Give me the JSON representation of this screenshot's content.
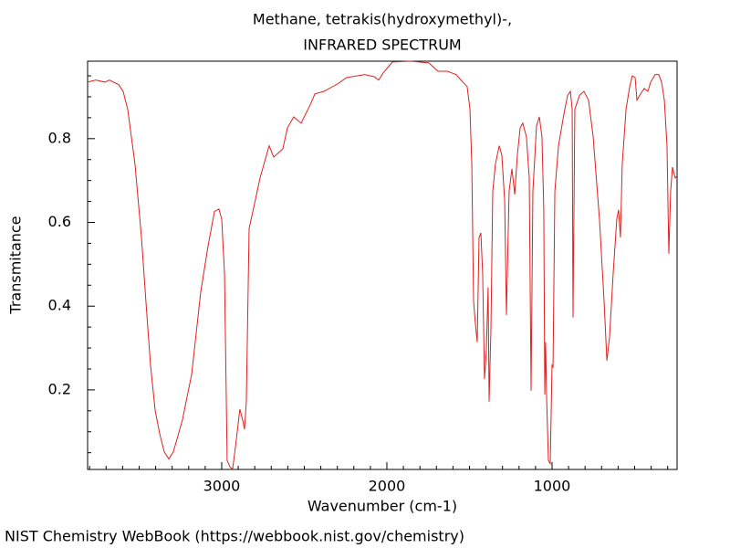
{
  "chart_data": {
    "type": "line",
    "title": "Methane, tetrakis(hydroxymethyl)-,",
    "subtitle": "INFRARED SPECTRUM",
    "xlabel": "Wavenumber (cm-1)",
    "ylabel": "Transmitance",
    "footer": "NIST Chemistry WebBook (https://webbook.nist.gov/chemistry)",
    "color": "#e02020",
    "xlim": [
      3812,
      243
    ],
    "ylim": [
      0.01,
      0.985
    ],
    "xticks": [
      3000,
      2000,
      1000
    ],
    "yticks": [
      0.2,
      0.4,
      0.6,
      0.8
    ],
    "xminorticks": [
      3800,
      3700,
      3600,
      3500,
      3400,
      3300,
      3200,
      3100,
      2900,
      2800,
      2700,
      2600,
      2500,
      2400,
      2300,
      2200,
      2100,
      1900,
      1800,
      1700,
      1600,
      1500,
      1400,
      1300,
      1200,
      1100,
      900,
      800,
      700,
      600,
      500,
      400,
      300
    ],
    "yminorticks": [
      0.05,
      0.1,
      0.15,
      0.25,
      0.3,
      0.35,
      0.45,
      0.5,
      0.55,
      0.65,
      0.7,
      0.75,
      0.85,
      0.9,
      0.95
    ],
    "x": [
      3812,
      3762,
      3707,
      3680,
      3624,
      3597,
      3569,
      3525,
      3486,
      3459,
      3431,
      3403,
      3376,
      3348,
      3320,
      3293,
      3238,
      3182,
      3127,
      3083,
      3044,
      3017,
      3000,
      2983,
      2967,
      2950,
      2934,
      2917,
      2890,
      2873,
      2862,
      2851,
      2834,
      2807,
      2768,
      2713,
      2685,
      2630,
      2602,
      2564,
      2519,
      2464,
      2436,
      2381,
      2298,
      2243,
      2133,
      2077,
      2050,
      2022,
      1967,
      1856,
      1746,
      1691,
      1635,
      1580,
      1552,
      1514,
      1497,
      1486,
      1475,
      1464,
      1453,
      1442,
      1431,
      1420,
      1409,
      1398,
      1387,
      1381,
      1370,
      1359,
      1343,
      1320,
      1304,
      1287,
      1276,
      1260,
      1243,
      1226,
      1210,
      1193,
      1177,
      1155,
      1138,
      1127,
      1116,
      1094,
      1077,
      1061,
      1050,
      1044,
      1039,
      1033,
      1022,
      1011,
      1000,
      994,
      983,
      961,
      928,
      906,
      889,
      878,
      873,
      862,
      834,
      807,
      779,
      751,
      713,
      685,
      668,
      652,
      630,
      608,
      597,
      586,
      575,
      552,
      530,
      514,
      497,
      486,
      464,
      442,
      420,
      403,
      376,
      354,
      337,
      320,
      304,
      293,
      282,
      271,
      254,
      243
    ],
    "values": [
      0.935,
      0.94,
      0.935,
      0.94,
      0.929,
      0.913,
      0.87,
      0.739,
      0.564,
      0.412,
      0.259,
      0.151,
      0.096,
      0.052,
      0.035,
      0.052,
      0.128,
      0.237,
      0.434,
      0.543,
      0.626,
      0.632,
      0.608,
      0.477,
      0.031,
      0.016,
      0.011,
      0.063,
      0.154,
      0.128,
      0.106,
      0.172,
      0.586,
      0.634,
      0.706,
      0.783,
      0.756,
      0.776,
      0.826,
      0.852,
      0.837,
      0.881,
      0.907,
      0.913,
      0.931,
      0.946,
      0.953,
      0.948,
      0.94,
      0.957,
      0.983,
      0.985,
      0.981,
      0.961,
      0.961,
      0.953,
      0.94,
      0.924,
      0.87,
      0.739,
      0.412,
      0.357,
      0.314,
      0.564,
      0.575,
      0.477,
      0.226,
      0.292,
      0.445,
      0.172,
      0.346,
      0.674,
      0.739,
      0.783,
      0.761,
      0.652,
      0.379,
      0.674,
      0.728,
      0.667,
      0.761,
      0.826,
      0.837,
      0.804,
      0.706,
      0.198,
      0.674,
      0.831,
      0.852,
      0.804,
      0.63,
      0.189,
      0.314,
      0.183,
      0.031,
      0.024,
      0.259,
      0.255,
      0.674,
      0.783,
      0.859,
      0.903,
      0.913,
      0.87,
      0.373,
      0.87,
      0.903,
      0.913,
      0.892,
      0.804,
      0.608,
      0.412,
      0.27,
      0.325,
      0.477,
      0.608,
      0.63,
      0.564,
      0.739,
      0.87,
      0.924,
      0.95,
      0.946,
      0.892,
      0.907,
      0.92,
      0.913,
      0.935,
      0.953,
      0.953,
      0.935,
      0.892,
      0.783,
      0.525,
      0.674,
      0.732,
      0.706,
      0.711
    ]
  }
}
